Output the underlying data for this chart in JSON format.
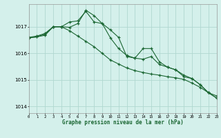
{
  "background_color": "#d4f0eb",
  "grid_color": "#b0d8d0",
  "line_color": "#1a6632",
  "title": "Graphe pression niveau de la mer (hPa)",
  "x_labels": [
    "0",
    "1",
    "2",
    "3",
    "4",
    "5",
    "6",
    "7",
    "8",
    "9",
    "10",
    "11",
    "12",
    "13",
    "14",
    "15",
    "16",
    "17",
    "18",
    "19",
    "20",
    "21",
    "22",
    "23"
  ],
  "xlim": [
    0,
    23
  ],
  "ylim": [
    1013.75,
    1017.85
  ],
  "yticks": [
    1014,
    1015,
    1016,
    1017
  ],
  "line1": [
    1016.6,
    1016.65,
    1016.75,
    1017.0,
    1017.0,
    1016.85,
    1016.65,
    1016.45,
    1016.25,
    1016.0,
    1015.75,
    1015.6,
    1015.45,
    1015.35,
    1015.28,
    1015.22,
    1015.18,
    1015.12,
    1015.08,
    1015.02,
    1014.88,
    1014.72,
    1014.52,
    1014.4
  ],
  "line2": [
    1016.58,
    1016.62,
    1016.72,
    1017.0,
    1017.0,
    1017.18,
    1017.22,
    1017.58,
    1017.18,
    1017.12,
    1016.88,
    1016.6,
    1015.88,
    1015.82,
    1016.18,
    1016.18,
    1015.68,
    1015.48,
    1015.38,
    1015.12,
    1015.05,
    1014.82,
    1014.52,
    1014.32
  ],
  "line3": [
    1016.58,
    1016.62,
    1016.68,
    1017.0,
    1017.0,
    1016.98,
    1017.12,
    1017.62,
    1017.42,
    1017.12,
    1016.58,
    1016.18,
    1015.92,
    1015.82,
    1015.78,
    1015.88,
    1015.58,
    1015.48,
    1015.38,
    1015.18,
    1015.05,
    1014.82,
    1014.52,
    1014.32
  ]
}
